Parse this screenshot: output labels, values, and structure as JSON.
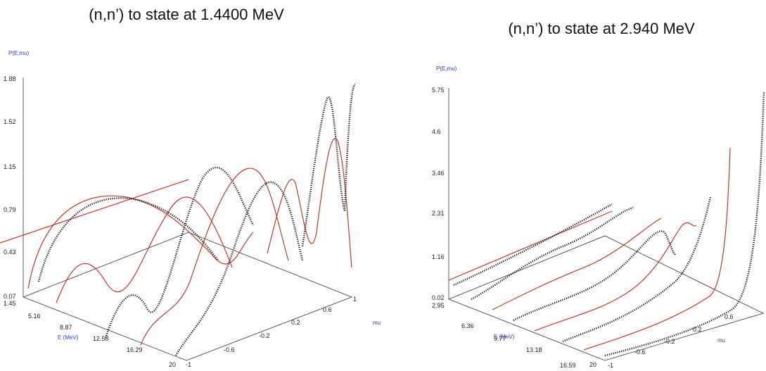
{
  "panels": [
    {
      "title": "(n,n’) to state at 1.4400 MeV",
      "z_label": "P(E,mu)",
      "zticks": [
        1.88,
        1.52,
        1.15,
        0.79,
        0.43,
        0.07
      ],
      "e_label": "E (MeV)",
      "eticks": [
        1.45,
        5.16,
        8.87,
        12.58,
        16.29,
        20
      ],
      "mu_label": "mu",
      "muticks": [
        -1,
        -0.6,
        -0.2,
        0.2,
        0.6,
        1
      ]
    },
    {
      "title": "(n,n’) to state at 2.940 MeV",
      "z_label": "P(E,mu)",
      "zticks": [
        5.75,
        4.6,
        3.46,
        2.31,
        1.16,
        0.02
      ],
      "e_label": "E (MeV)",
      "eticks": [
        2.95,
        6.36,
        9.77,
        13.18,
        16.59,
        20
      ],
      "mu_label": "mu",
      "muticks": [
        -1,
        -0.6,
        -0.2,
        0.2,
        0.6
      ]
    }
  ]
}
